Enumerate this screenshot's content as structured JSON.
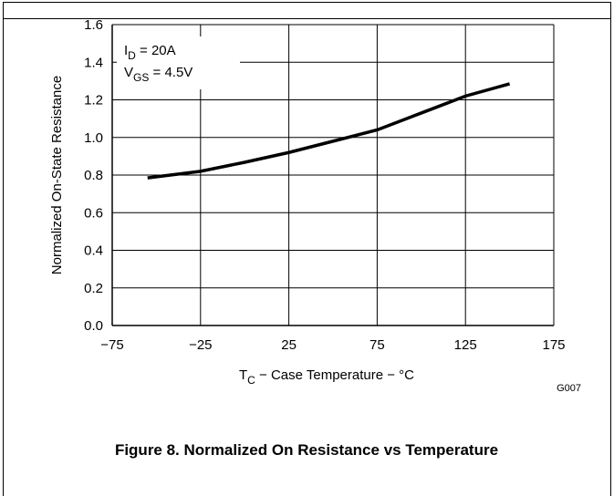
{
  "chart_data": {
    "type": "line",
    "caption": "Figure 8. Normalized On Resistance vs Temperature",
    "figure_code": "G007",
    "ylabel": "Normalized On-State Resistance",
    "xlabel": [
      "T",
      "C",
      " − Case Temperature − °C"
    ],
    "annotations": [
      [
        "I",
        "D",
        " = 20A"
      ],
      [
        "V",
        "GS",
        " = 4.5V"
      ]
    ],
    "x": [
      -55,
      -25,
      0,
      25,
      50,
      75,
      100,
      125,
      150
    ],
    "values": [
      0.785,
      0.82,
      0.868,
      0.92,
      0.98,
      1.04,
      1.13,
      1.22,
      1.285
    ],
    "color": "#000000",
    "xlim": [
      -75,
      175
    ],
    "xticks": [
      {
        "value": -75,
        "label": "−75"
      },
      {
        "value": -25,
        "label": "−25"
      },
      25,
      75,
      125,
      175
    ],
    "ylim": [
      0,
      1.6
    ],
    "yticks": [
      {
        "value": 0,
        "label": "0.0"
      },
      0.2,
      0.4,
      0.6,
      0.8,
      {
        "value": 1,
        "label": "1.0"
      },
      1.2,
      1.4,
      1.6
    ],
    "grid": true
  }
}
